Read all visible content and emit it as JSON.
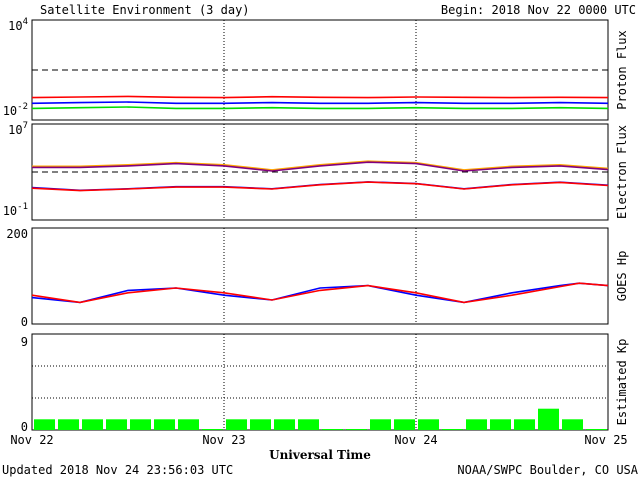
{
  "header": {
    "title": "Satellite Environment (3 day)",
    "begin": "Begin:  2018 Nov 22 0000 UTC"
  },
  "footer": {
    "updated": "Updated 2018 Nov 24 23:56:03 UTC",
    "source": "NOAA/SWPC Boulder, CO USA"
  },
  "xaxis": {
    "label": "Universal Time",
    "ticks": [
      "Nov 22",
      "Nov 23",
      "Nov 24",
      "Nov 25"
    ],
    "range_days": [
      0,
      3
    ]
  },
  "chart_data": [
    {
      "type": "line",
      "ylabel": "Proton Flux",
      "yscale": "log",
      "ylim": [
        0.01,
        10000
      ],
      "y_tick_labels": {
        "top": "10",
        "top_exp": "4",
        "bottom": "10",
        "bottom_exp": "-2"
      },
      "threshold": 10,
      "series": [
        {
          "color": "#ff0000",
          "x": [
            0,
            0.25,
            0.5,
            0.75,
            1,
            1.25,
            1.5,
            1.75,
            2,
            2.25,
            2.5,
            2.75,
            3
          ],
          "y": [
            0.22,
            0.24,
            0.26,
            0.23,
            0.22,
            0.25,
            0.23,
            0.22,
            0.24,
            0.23,
            0.22,
            0.23,
            0.22
          ]
        },
        {
          "color": "#0000ff",
          "x": [
            0,
            0.25,
            0.5,
            0.75,
            1,
            1.25,
            1.5,
            1.75,
            2,
            2.25,
            2.5,
            2.75,
            3
          ],
          "y": [
            0.1,
            0.11,
            0.12,
            0.1,
            0.1,
            0.11,
            0.1,
            0.1,
            0.11,
            0.1,
            0.1,
            0.11,
            0.1
          ]
        },
        {
          "color": "#00dd00",
          "x": [
            0,
            0.25,
            0.5,
            0.75,
            1,
            1.25,
            1.5,
            1.75,
            2,
            2.25,
            2.5,
            2.75,
            3
          ],
          "y": [
            0.05,
            0.055,
            0.06,
            0.05,
            0.05,
            0.055,
            0.05,
            0.05,
            0.055,
            0.05,
            0.05,
            0.055,
            0.05
          ]
        }
      ]
    },
    {
      "type": "line",
      "ylabel": "Electron Flux",
      "yscale": "log",
      "ylim": [
        0.1,
        10000000
      ],
      "y_tick_labels": {
        "top": "10",
        "top_exp": "7",
        "bottom": "10",
        "bottom_exp": "-1"
      },
      "threshold": 1000,
      "series": [
        {
          "color": "#ffa500",
          "x": [
            0,
            0.25,
            0.5,
            0.75,
            1,
            1.25,
            1.5,
            1.75,
            2,
            2.25,
            2.5,
            2.75,
            3
          ],
          "y": [
            3000,
            3000,
            4000,
            6000,
            4000,
            1500,
            4000,
            8000,
            6000,
            1500,
            3000,
            4000,
            2000
          ]
        },
        {
          "color": "#800080",
          "x": [
            0,
            0.25,
            0.5,
            0.75,
            1,
            1.25,
            1.5,
            1.75,
            2,
            2.25,
            2.5,
            2.75,
            3
          ],
          "y": [
            2400,
            2400,
            3200,
            5000,
            3200,
            1200,
            3200,
            6500,
            5000,
            1200,
            2400,
            3200,
            1600
          ]
        },
        {
          "color": "#0000ff",
          "x": [
            0,
            0.25,
            0.5,
            0.75,
            1,
            1.25,
            1.5,
            1.75,
            2,
            2.25,
            2.5,
            2.75,
            3
          ],
          "y": [
            50,
            30,
            40,
            60,
            60,
            40,
            90,
            150,
            110,
            40,
            90,
            140,
            80
          ]
        },
        {
          "color": "#ff0000",
          "x": [
            0,
            0.25,
            0.5,
            0.75,
            1,
            1.25,
            1.5,
            1.75,
            2,
            2.25,
            2.5,
            2.75,
            3
          ],
          "y": [
            45,
            28,
            38,
            55,
            55,
            38,
            85,
            145,
            105,
            38,
            85,
            135,
            75
          ]
        }
      ]
    },
    {
      "type": "line",
      "ylabel": "GOES Hp",
      "yscale": "linear",
      "ylim": [
        0,
        200
      ],
      "y_tick_labels": {
        "top": "200",
        "bottom": "0"
      },
      "series": [
        {
          "color": "#0000ff",
          "x": [
            0,
            0.25,
            0.5,
            0.75,
            1,
            1.25,
            1.5,
            1.75,
            2,
            2.25,
            2.5,
            2.75,
            2.85,
            3
          ],
          "y": [
            55,
            45,
            70,
            75,
            60,
            50,
            75,
            80,
            60,
            45,
            65,
            80,
            85,
            80
          ]
        },
        {
          "color": "#ff0000",
          "x": [
            0,
            0.25,
            0.5,
            0.75,
            1,
            1.25,
            1.5,
            1.75,
            2,
            2.25,
            2.5,
            2.75,
            2.85,
            3
          ],
          "y": [
            60,
            45,
            65,
            75,
            65,
            50,
            70,
            80,
            65,
            45,
            60,
            78,
            85,
            80
          ]
        }
      ]
    },
    {
      "type": "bar",
      "ylabel": "Estimated Kp",
      "ylim": [
        0,
        9
      ],
      "y_tick_labels": {
        "top": "9",
        "bottom": "0"
      },
      "bar_color": "#00ff00",
      "interval_hours": 3,
      "values": [
        1,
        1,
        1,
        1,
        1,
        1,
        1,
        0,
        1,
        1,
        1,
        1,
        0,
        0,
        1,
        1,
        1,
        0,
        1,
        1,
        1,
        2,
        1,
        0
      ]
    }
  ]
}
